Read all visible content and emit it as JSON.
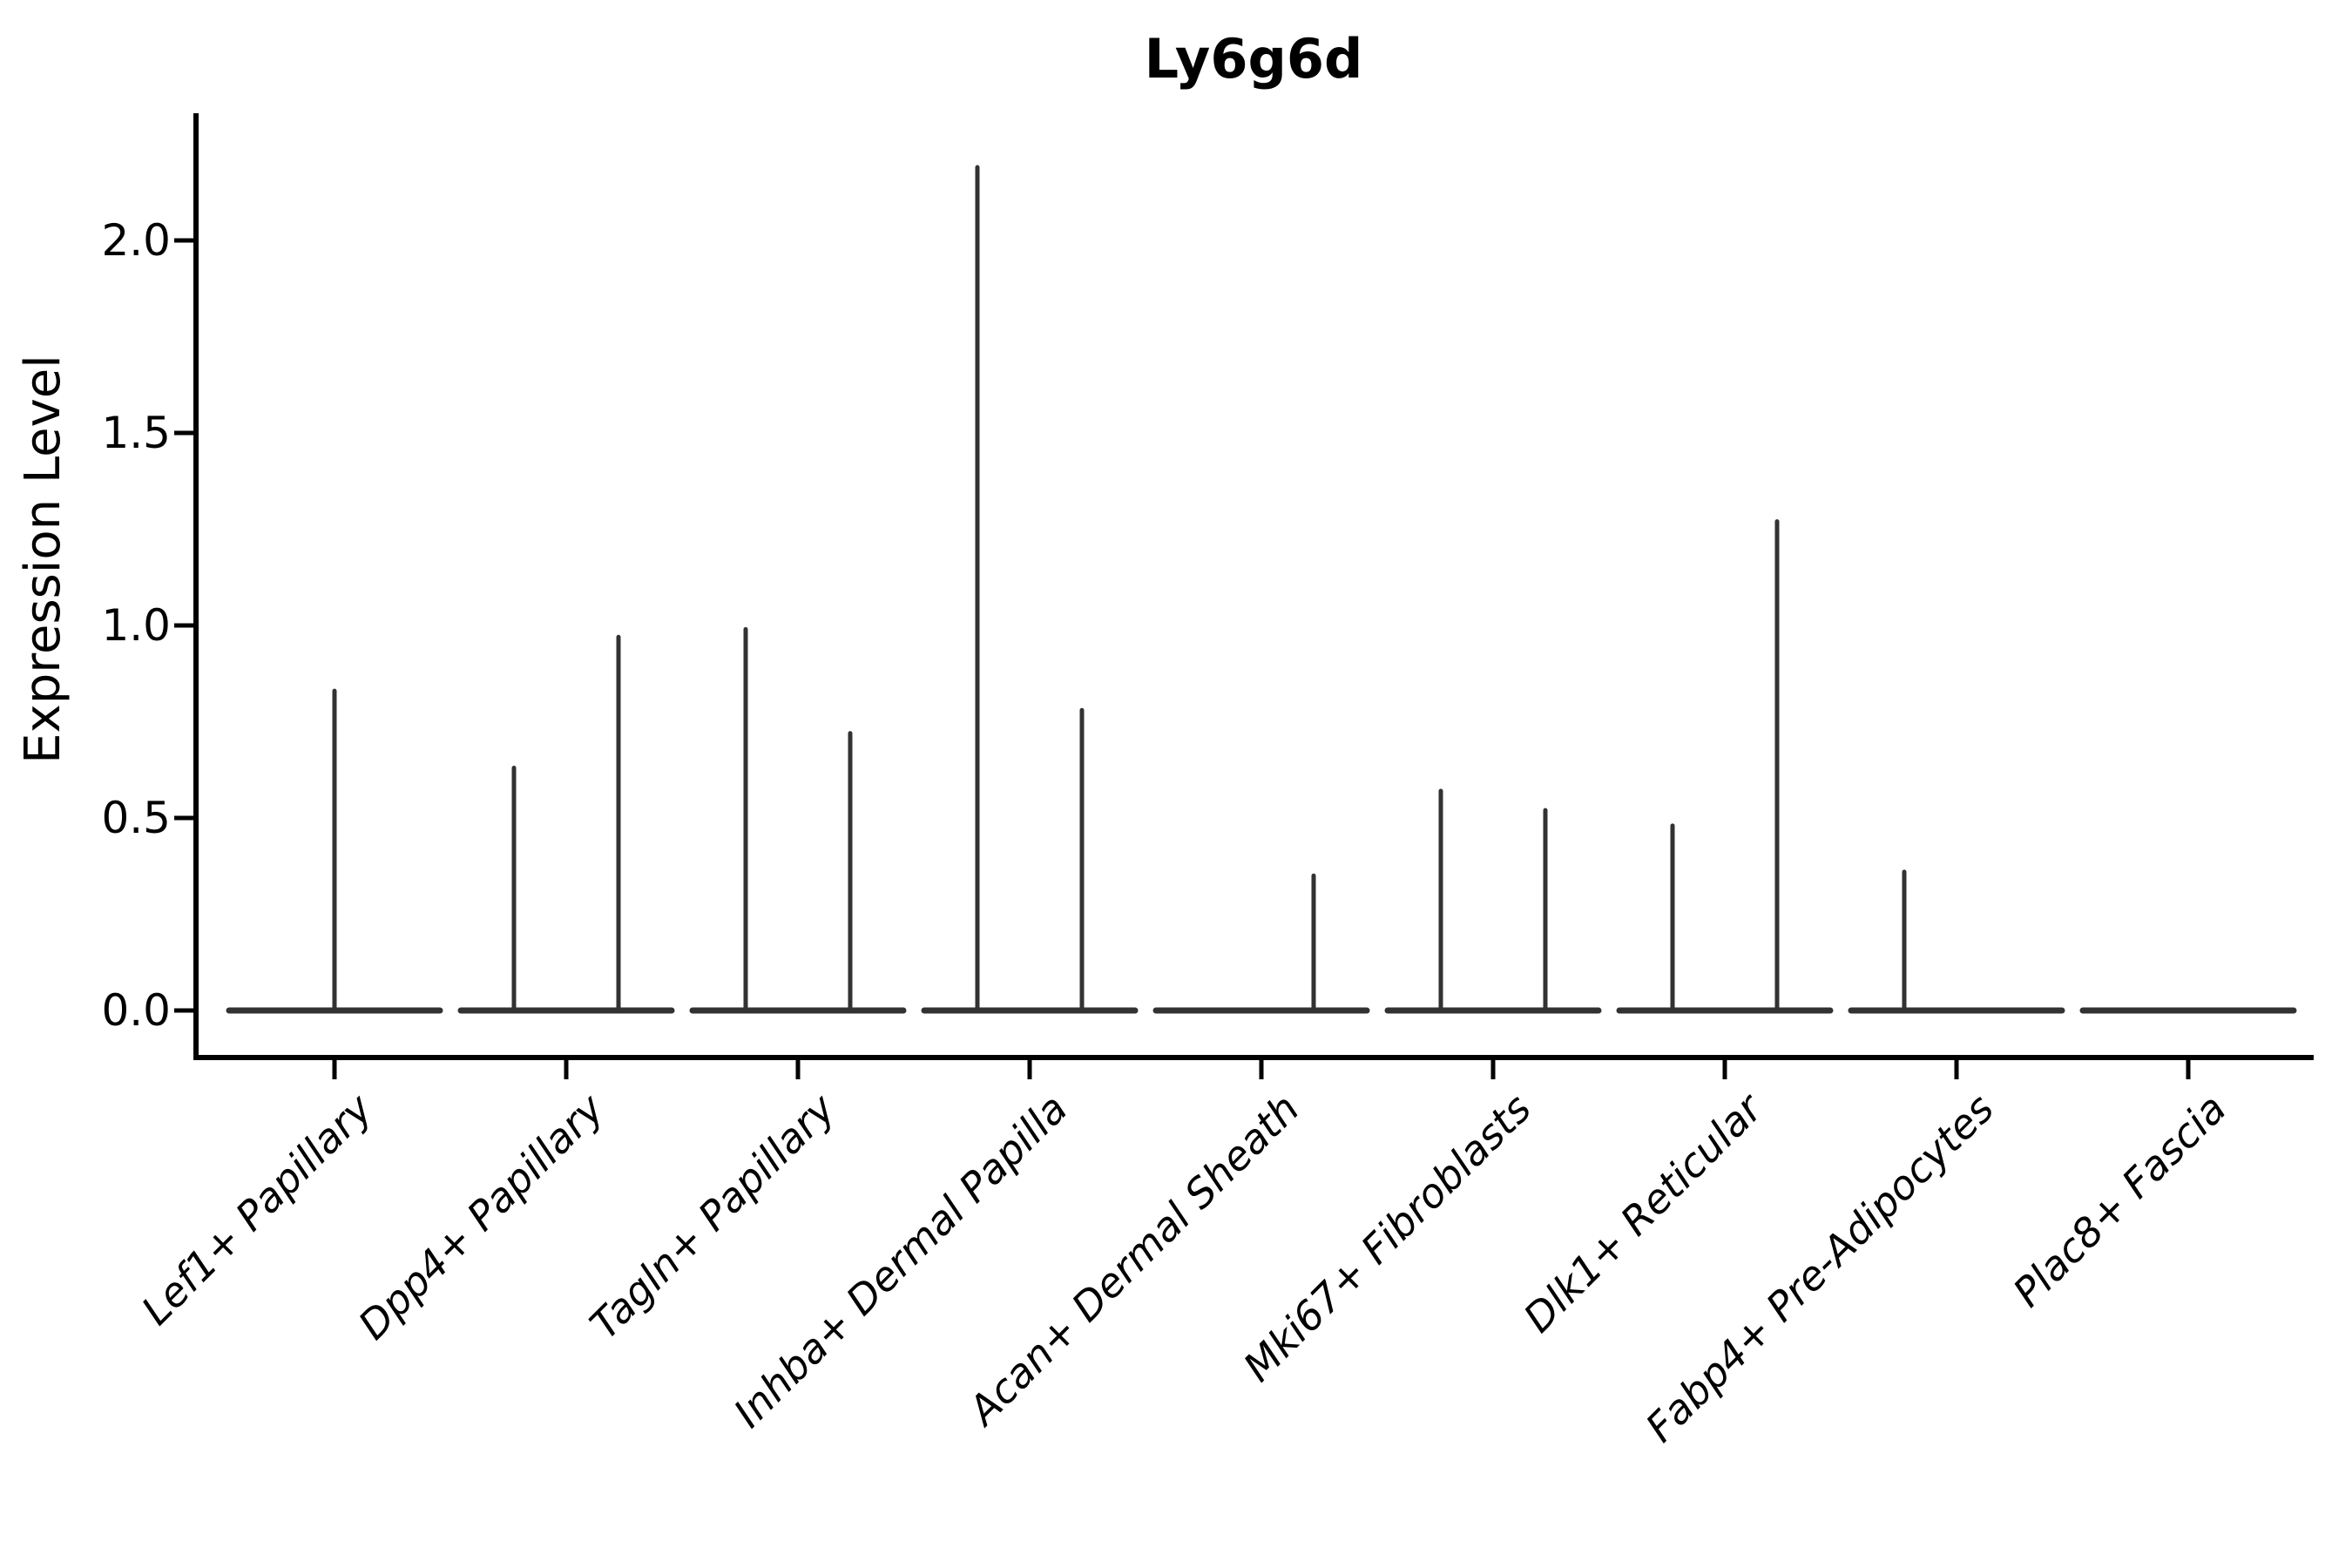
{
  "title": "Ly6g6d",
  "axes": {
    "ylabel": "Expression Level",
    "xlabel": ""
  },
  "chart_data": {
    "type": "violin",
    "title": "Ly6g6d",
    "ylabel": "Expression Level",
    "xlabel": "",
    "grid": false,
    "legend": "none",
    "ylim": [
      -0.13,
      2.31
    ],
    "y_ticks": [
      0.0,
      0.5,
      1.0,
      1.5,
      2.0
    ],
    "y_tick_labels": [
      "0.0",
      "0.5",
      "1.0",
      "1.5",
      "2.0"
    ],
    "categories": [
      "Lef1+ Papillary",
      "Dpp4+ Papillary",
      "Tagln+ Papillary",
      "Inhba+ Dermal Papilla",
      "Acan+ Dermal Sheath",
      "Mki67+ Fibroblasts",
      "Dlk1+ Reticular",
      "Fabp4+ Pre-Adipocytes",
      "Plac8+ Fascia"
    ],
    "description": "Each category shows a flat violin baseline at expression 0 with thin spikes reaching the maximum expression of each dodged group",
    "violins": [
      {
        "category": "Lef1+ Papillary",
        "spikes": [
          {
            "position": "center",
            "max": 0.83
          }
        ]
      },
      {
        "category": "Dpp4+ Papillary",
        "spikes": [
          {
            "position": "left",
            "max": 0.63
          },
          {
            "position": "right",
            "max": 0.97
          }
        ]
      },
      {
        "category": "Tagln+ Papillary",
        "spikes": [
          {
            "position": "left",
            "max": 0.99
          },
          {
            "position": "right",
            "max": 0.72
          }
        ]
      },
      {
        "category": "Inhba+ Dermal Papilla",
        "spikes": [
          {
            "position": "left",
            "max": 2.19
          },
          {
            "position": "right",
            "max": 0.78
          }
        ]
      },
      {
        "category": "Acan+ Dermal Sheath",
        "spikes": [
          {
            "position": "right",
            "max": 0.35
          }
        ]
      },
      {
        "category": "Mki67+ Fibroblasts",
        "spikes": [
          {
            "position": "left",
            "max": 0.57
          },
          {
            "position": "right",
            "max": 0.52
          }
        ]
      },
      {
        "category": "Dlk1+ Reticular",
        "spikes": [
          {
            "position": "left",
            "max": 0.48
          },
          {
            "position": "right",
            "max": 1.27
          }
        ]
      },
      {
        "category": "Fabp4+ Pre-Adipocytes",
        "spikes": [
          {
            "position": "left",
            "max": 0.36
          }
        ]
      },
      {
        "category": "Plac8+ Fascia",
        "spikes": []
      }
    ],
    "colors": {
      "violin": "#323232",
      "axis": "#000000",
      "text": "#000000",
      "background": "#ffffff"
    }
  }
}
